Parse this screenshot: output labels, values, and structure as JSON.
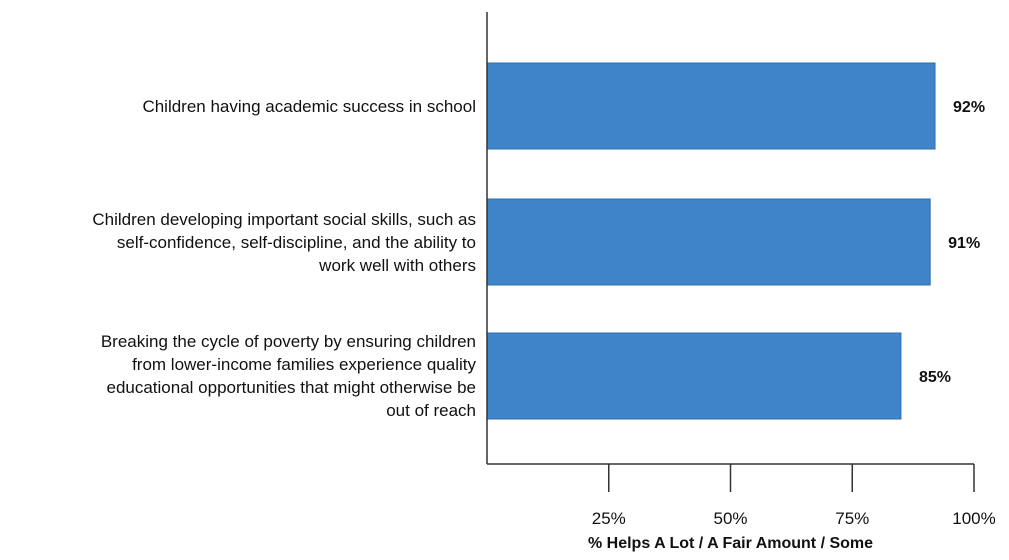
{
  "chart_data": {
    "type": "bar",
    "orientation": "horizontal",
    "categories": [
      "Children having academic success in school",
      "Children developing important social skills, such as self-confidence, self-discipline, and the ability to work well with others",
      "Breaking the cycle of poverty by ensuring children from lower-income families experience quality educational opportunities that might otherwise be out of reach"
    ],
    "category_lines": [
      [
        "Children having academic success in school"
      ],
      [
        "Children developing important social skills, such as",
        "self-confidence, self-discipline, and the ability to",
        "work well with others"
      ],
      [
        "Breaking the cycle of poverty by ensuring children",
        "from lower-income families experience quality",
        "educational opportunities that might otherwise be",
        "out of reach"
      ]
    ],
    "values": [
      92,
      91,
      85
    ],
    "value_labels": [
      "92%",
      "91%",
      "85%"
    ],
    "xlabel": "% Helps A Lot / A Fair Amount / Some",
    "ylabel": "",
    "xlim": [
      0,
      100
    ],
    "ticks": [
      25,
      50,
      75,
      100
    ],
    "tick_labels": [
      "25%",
      "50%",
      "75%",
      "100%"
    ],
    "bar_color": "#3f84c8",
    "grid": false,
    "legend": "none"
  }
}
